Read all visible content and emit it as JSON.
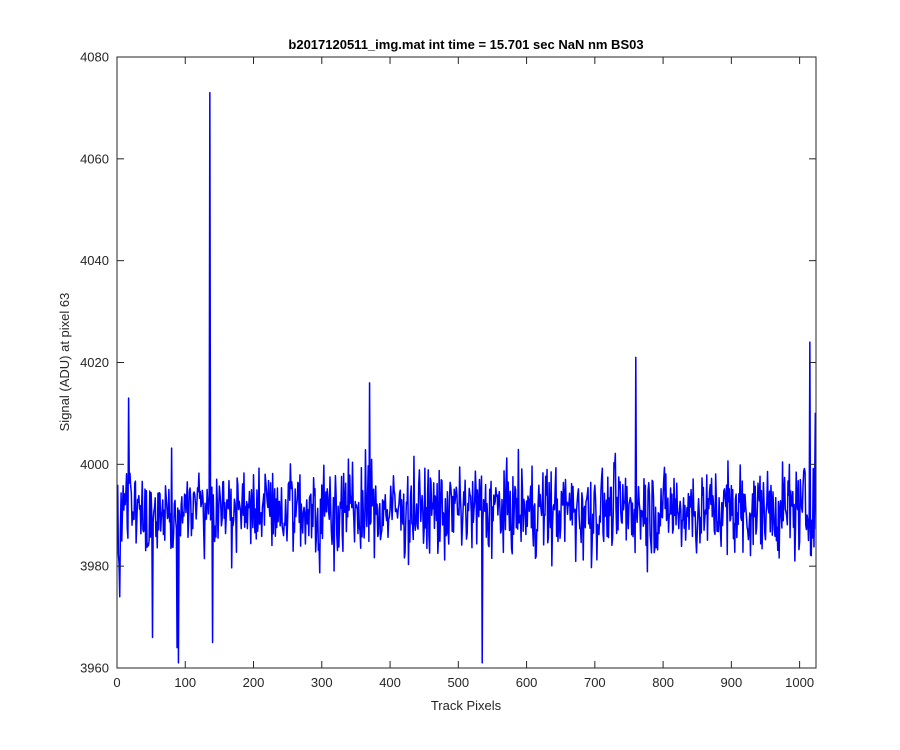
{
  "chart_data": {
    "type": "line",
    "title": "b2017120511_img.mat int time = 15.701 sec  NaN nm BS03",
    "xlabel": "Track Pixels",
    "ylabel": "Signal (ADU) at pixel 63",
    "xlim": [
      0,
      1024
    ],
    "ylim": [
      3960,
      4080
    ],
    "xticks": [
      0,
      100,
      200,
      300,
      400,
      500,
      600,
      700,
      800,
      900,
      1000
    ],
    "yticks": [
      3960,
      3980,
      4000,
      4020,
      4040,
      4060,
      4080
    ],
    "grid": false,
    "line_color": "#0000ff",
    "series": [
      {
        "baseline": 3991,
        "noise_range": [
          3961,
          4016
        ],
        "notable_points": [
          {
            "x": 1,
            "y": 3996
          },
          {
            "x": 4,
            "y": 3974
          },
          {
            "x": 17,
            "y": 4013
          },
          {
            "x": 52,
            "y": 3966
          },
          {
            "x": 88,
            "y": 3964
          },
          {
            "x": 90,
            "y": 3961
          },
          {
            "x": 136,
            "y": 4073
          },
          {
            "x": 140,
            "y": 3965
          },
          {
            "x": 370,
            "y": 4016
          },
          {
            "x": 535,
            "y": 3961
          },
          {
            "x": 760,
            "y": 4021
          },
          {
            "x": 1015,
            "y": 4024
          },
          {
            "x": 1023,
            "y": 4010
          }
        ]
      }
    ]
  }
}
